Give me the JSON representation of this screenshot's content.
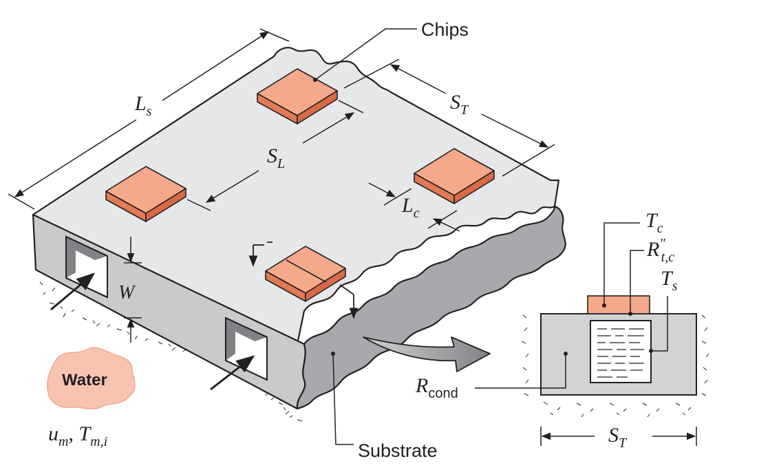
{
  "labels": {
    "chips": "Chips",
    "substrate": "Substrate",
    "water": "Water",
    "r_cond_main": "R",
    "r_cond_sub": "cond"
  },
  "symbols": {
    "Ls": {
      "main": "L",
      "sub": "s"
    },
    "ST_top": {
      "main": "S",
      "sub": "T"
    },
    "SL": {
      "main": "S",
      "sub": "L"
    },
    "Lc": {
      "main": "L",
      "sub": "c"
    },
    "W": {
      "main": "W"
    },
    "Tc": {
      "main": "T",
      "sub": "c"
    },
    "Rtc": {
      "main": "R",
      "sup": "″",
      "sub": "t,c"
    },
    "Ts": {
      "main": "T",
      "sub": "s"
    },
    "ST_bottom": {
      "main": "S",
      "sub": "T"
    },
    "um": {
      "main": "u",
      "sub": "m"
    },
    "sep": ", ",
    "Tmi": {
      "main": "T",
      "sub": "m,i"
    }
  },
  "colors": {
    "substrate_top": "#e6e7e8",
    "substrate_side": "#c9cacc",
    "substrate_dark": "#a7a9ac",
    "chip_top": "#f4a98a",
    "chip_side": "#e07a57",
    "water_blob": "#f7c4b0",
    "line": "#231f20",
    "coolant": "#ffffff",
    "arrow_gray": "#9d9fa2"
  }
}
